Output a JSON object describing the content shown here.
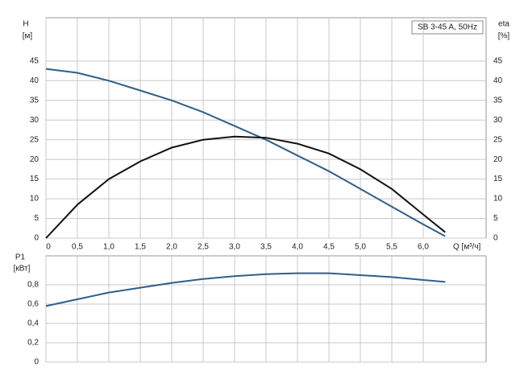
{
  "chart_data": [
    {
      "type": "line",
      "title": "SB 3-45 A, 50Hz",
      "ylabel": "H",
      "ylabel_unit": "[м]",
      "y2label": "eta",
      "y2label_unit": "[%]",
      "xlabel": "Q [м³/ч]",
      "x": [
        0,
        0.5,
        1,
        1.5,
        2,
        2.5,
        3,
        3.5,
        4,
        4.5,
        5,
        5.5,
        6,
        6.35
      ],
      "series": [
        {
          "name": "H",
          "color": "#2e5f8a",
          "axis": "y",
          "values": [
            43,
            42,
            40,
            37.5,
            35,
            32,
            28.5,
            25,
            21,
            17,
            12.5,
            8,
            3.5,
            0.5
          ]
        },
        {
          "name": "eta",
          "color": "#111111",
          "axis": "y2",
          "values": [
            0,
            8.5,
            15,
            19.5,
            23,
            25,
            25.8,
            25.5,
            24,
            21.5,
            17.5,
            12.5,
            6,
            1.5
          ]
        }
      ],
      "xlim": [
        0,
        7
      ],
      "xticks": [
        0,
        {
          "value": 0.5,
          "label": "0,5"
        },
        {
          "value": 1,
          "label": "1,0"
        },
        {
          "value": 1.5,
          "label": "1,5"
        },
        {
          "value": 2,
          "label": "2,0"
        },
        {
          "value": 2.5,
          "label": "2,5"
        },
        {
          "value": 3,
          "label": "3,0"
        },
        {
          "value": 3.5,
          "label": "3,5"
        },
        {
          "value": 4,
          "label": "4,0"
        },
        {
          "value": 4.5,
          "label": "4,5"
        },
        {
          "value": 5,
          "label": "5,0"
        },
        {
          "value": 5.5,
          "label": "5,5"
        },
        {
          "value": 6,
          "label": "6,0"
        }
      ],
      "ylim": [
        0,
        56
      ],
      "yticks": [
        0,
        5,
        10,
        15,
        20,
        25,
        30,
        35,
        40,
        45
      ],
      "y2lim": [
        0,
        56
      ],
      "y2ticks": [
        0,
        5,
        10,
        15,
        20,
        25,
        30,
        35,
        40,
        45
      ],
      "grid": true
    },
    {
      "type": "line",
      "ylabel": "P1",
      "ylabel_unit": "[кВт]",
      "x": [
        0,
        0.5,
        1,
        1.5,
        2,
        2.5,
        3,
        3.5,
        4,
        4.5,
        5,
        5.5,
        6,
        6.35
      ],
      "series": [
        {
          "name": "P1",
          "color": "#2e5f8a",
          "axis": "y",
          "values": [
            0.58,
            0.65,
            0.72,
            0.77,
            0.82,
            0.86,
            0.89,
            0.91,
            0.92,
            0.92,
            0.9,
            0.88,
            0.85,
            0.83
          ]
        }
      ],
      "xlim": [
        0,
        7
      ],
      "ylim": [
        0,
        1.1
      ],
      "yticks": [
        0,
        {
          "value": 0.2,
          "label": "0,2"
        },
        {
          "value": 0.4,
          "label": "0,4"
        },
        {
          "value": 0.6,
          "label": "0,6"
        },
        {
          "value": 0.8,
          "label": "0,8"
        }
      ],
      "grid": true
    }
  ]
}
